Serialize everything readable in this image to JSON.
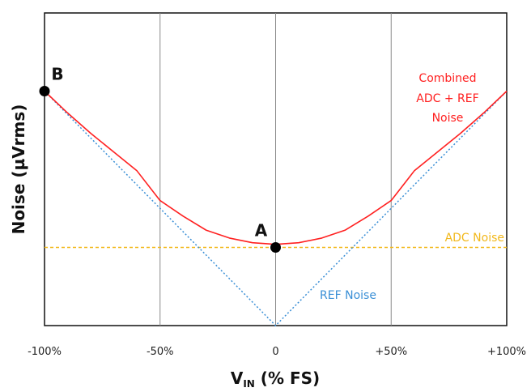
{
  "chart_data": {
    "type": "line",
    "xlabel_main": "V",
    "xlabel_sub": "IN",
    "xlabel_rest": " (% FS)",
    "ylabel": "Noise (µVrms)",
    "xlim": [
      -100,
      100
    ],
    "ylim": [
      0,
      100
    ],
    "x_ticks": [
      {
        "value": -100,
        "label": "-100%"
      },
      {
        "value": -50,
        "label": "-50%"
      },
      {
        "value": 0,
        "label": "0"
      },
      {
        "value": 50,
        "label": "+50%"
      },
      {
        "value": 100,
        "label": "+100%"
      }
    ],
    "grid_vertical": [
      -50,
      0,
      50
    ],
    "series": [
      {
        "name": "Combined ADC + REF Noise",
        "color": "#ff2020",
        "style": "solid",
        "x": [
          -100,
          -90,
          -80,
          -70,
          -60,
          -50,
          -40,
          -30,
          -20,
          -10,
          0,
          10,
          20,
          30,
          40,
          50,
          60,
          70,
          80,
          90,
          100
        ],
        "y": [
          75,
          68,
          61.5,
          55.5,
          49.5,
          40,
          35,
          30.5,
          28,
          26.5,
          26,
          26.5,
          28,
          30.5,
          35,
          40,
          49.5,
          55.5,
          61.5,
          68,
          75
        ]
      },
      {
        "name": "REF Noise",
        "color": "#3a8fd6",
        "style": "dotted",
        "x": [
          -100,
          0,
          100
        ],
        "y": [
          75,
          0,
          75
        ]
      },
      {
        "name": "ADC Noise",
        "color": "#f2b81b",
        "style": "dashed",
        "x": [
          -100,
          100
        ],
        "y": [
          25,
          25
        ]
      }
    ],
    "annotations": [
      {
        "text": "Combined",
        "color": "#ff2020"
      },
      {
        "text": "ADC + REF",
        "color": "#ff2020"
      },
      {
        "text": "Noise",
        "color": "#ff2020"
      },
      {
        "text": "ADC Noise",
        "color": "#f2b81b"
      },
      {
        "text": "REF Noise",
        "color": "#3a8fd6"
      }
    ],
    "points": [
      {
        "label": "A",
        "x": 0,
        "y": 25
      },
      {
        "label": "B",
        "x": -100,
        "y": 75
      }
    ]
  }
}
